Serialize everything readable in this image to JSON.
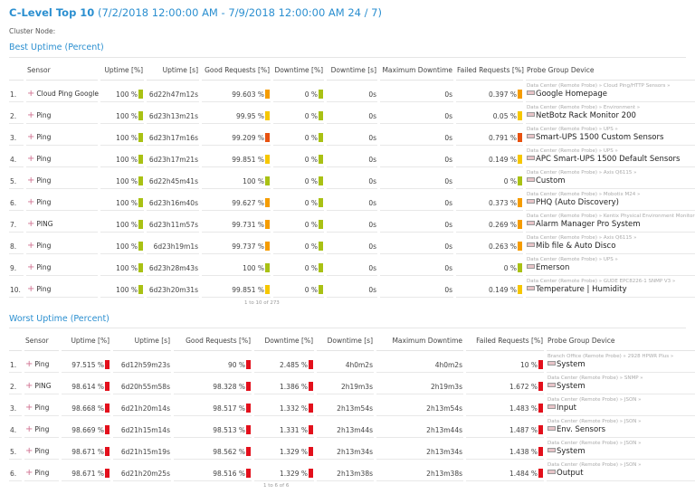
{
  "header": {
    "title_bold": "C-Level Top 10",
    "title_range": "(7/2/2018 12:00:00 AM - 7/9/2018 12:00:00 AM 24 / 7)",
    "cluster_label": "Cluster Node:"
  },
  "colors": {
    "green": "#a9c114",
    "yellow": "#f6c700",
    "orange": "#f59c00",
    "redorange": "#e8520f",
    "red": "#e3101c"
  },
  "best": {
    "title": "Best Uptime (Percent)",
    "columns": [
      "",
      "Sensor",
      "Uptime [%]",
      "Uptime [s]",
      "Good Requests [%]",
      "Downtime [%]",
      "Downtime [s]",
      "Maximum Downtime",
      "Failed Requests [%]",
      "Probe Group Device"
    ],
    "pager": "1 to 10 of 273",
    "rows": [
      {
        "n": "1.",
        "sensor": "Cloud Ping Google",
        "up": "100 %",
        "up_c": "green",
        "ups": "6d22h47m12s",
        "good": "99.603 %",
        "good_c": "orange",
        "down": "0 %",
        "down_c": "green",
        "downs": "0s",
        "max": "0s",
        "fail": "0.397 %",
        "fail_c": "orange",
        "path": "Data Center (Remote Probe) »  Cloud Ping/HTTP Sensors »",
        "device": "Google Homepage"
      },
      {
        "n": "2.",
        "sensor": "Ping",
        "up": "100 %",
        "up_c": "green",
        "ups": "6d23h13m21s",
        "good": "99.95 %",
        "good_c": "yellow",
        "down": "0 %",
        "down_c": "green",
        "downs": "0s",
        "max": "0s",
        "fail": "0.05 %",
        "fail_c": "yellow",
        "path": "Data Center (Remote Probe) »  Environment »",
        "device": "NetBotz Rack Monitor 200"
      },
      {
        "n": "3.",
        "sensor": "Ping",
        "up": "100 %",
        "up_c": "green",
        "ups": "6d23h17m16s",
        "good": "99.209 %",
        "good_c": "redorange",
        "down": "0 %",
        "down_c": "green",
        "downs": "0s",
        "max": "0s",
        "fail": "0.791 %",
        "fail_c": "redorange",
        "path": "Data Center (Remote Probe) »  UPS »",
        "device": "Smart-UPS 1500 Custom Sensors"
      },
      {
        "n": "4.",
        "sensor": "Ping",
        "up": "100 %",
        "up_c": "green",
        "ups": "6d23h17m21s",
        "good": "99.851 %",
        "good_c": "yellow",
        "down": "0 %",
        "down_c": "green",
        "downs": "0s",
        "max": "0s",
        "fail": "0.149 %",
        "fail_c": "yellow",
        "path": "Data Center (Remote Probe) »  UPS »",
        "device": "APC Smart-UPS 1500 Default Sensors"
      },
      {
        "n": "5.",
        "sensor": "Ping",
        "up": "100 %",
        "up_c": "green",
        "ups": "6d22h45m41s",
        "good": "100 %",
        "good_c": "green",
        "down": "0 %",
        "down_c": "green",
        "downs": "0s",
        "max": "0s",
        "fail": "0 %",
        "fail_c": "green",
        "path": "Data Center (Remote Probe) »  Axis Q6115 »",
        "device": "Custom"
      },
      {
        "n": "6.",
        "sensor": "Ping",
        "up": "100 %",
        "up_c": "green",
        "ups": "6d23h16m40s",
        "good": "99.627 %",
        "good_c": "orange",
        "down": "0 %",
        "down_c": "green",
        "downs": "0s",
        "max": "0s",
        "fail": "0.373 %",
        "fail_c": "orange",
        "path": "Data Center (Remote Probe) »  Mobotix M24 »",
        "device": "PHQ (Auto Discovery)"
      },
      {
        "n": "7.",
        "sensor": "PING",
        "up": "100 %",
        "up_c": "green",
        "ups": "6d23h11m57s",
        "good": "99.731 %",
        "good_c": "orange",
        "down": "0 %",
        "down_c": "green",
        "downs": "0s",
        "max": "0s",
        "fail": "0.269 %",
        "fail_c": "orange",
        "path": "Data Center (Remote Probe) »  Kentix Physical Environment Monitoring",
        "device": "Alarm Manager Pro System"
      },
      {
        "n": "8.",
        "sensor": "Ping",
        "up": "100 %",
        "up_c": "green",
        "ups": "6d23h19m1s",
        "good": "99.737 %",
        "good_c": "orange",
        "down": "0 %",
        "down_c": "green",
        "downs": "0s",
        "max": "0s",
        "fail": "0.263 %",
        "fail_c": "orange",
        "path": "Data Center (Remote Probe) »  Axis Q6115 »",
        "device": "Mib file & Auto Disco"
      },
      {
        "n": "9.",
        "sensor": "Ping",
        "up": "100 %",
        "up_c": "green",
        "ups": "6d23h28m43s",
        "good": "100 %",
        "good_c": "green",
        "down": "0 %",
        "down_c": "green",
        "downs": "0s",
        "max": "0s",
        "fail": "0 %",
        "fail_c": "green",
        "path": "Data Center (Remote Probe) »  UPS »",
        "device": "Emerson"
      },
      {
        "n": "10.",
        "sensor": "Ping",
        "up": "100 %",
        "up_c": "green",
        "ups": "6d23h20m31s",
        "good": "99.851 %",
        "good_c": "yellow",
        "down": "0 %",
        "down_c": "green",
        "downs": "0s",
        "max": "0s",
        "fail": "0.149 %",
        "fail_c": "yellow",
        "path": "Data Center (Remote Probe) »  GUDE EPC8226-1 SNMP V3 »",
        "device": "Temperature | Humidity"
      }
    ]
  },
  "worst": {
    "title": "Worst Uptime (Percent)",
    "columns": [
      "",
      "Sensor",
      "Uptime [%]",
      "Uptime [s]",
      "Good Requests [%]",
      "Downtime [%]",
      "Downtime [s]",
      "Maximum Downtime",
      "Failed Requests [%]",
      "Probe Group Device"
    ],
    "pager": "1 to 6 of 6",
    "rows": [
      {
        "n": "1.",
        "sensor": "Ping",
        "up": "97.515 %",
        "up_c": "red",
        "ups": "6d12h59m23s",
        "good": "90 %",
        "good_c": "red",
        "down": "2.485 %",
        "down_c": "red",
        "downs": "4h0m2s",
        "max": "4h0m2s",
        "fail": "10 %",
        "fail_c": "red",
        "path": "Branch Office (Remote Probe) »  2928 HPWR Plus »",
        "device": "System"
      },
      {
        "n": "2.",
        "sensor": "PING",
        "up": "98.614 %",
        "up_c": "red",
        "ups": "6d20h55m58s",
        "good": "98.328 %",
        "good_c": "red",
        "down": "1.386 %",
        "down_c": "red",
        "downs": "2h19m3s",
        "max": "2h19m3s",
        "fail": "1.672 %",
        "fail_c": "red",
        "path": "Data Center (Remote Probe) »  SNMP »",
        "device": "System"
      },
      {
        "n": "3.",
        "sensor": "Ping",
        "up": "98.668 %",
        "up_c": "red",
        "ups": "6d21h20m14s",
        "good": "98.517 %",
        "good_c": "red",
        "down": "1.332 %",
        "down_c": "red",
        "downs": "2h13m54s",
        "max": "2h13m54s",
        "fail": "1.483 %",
        "fail_c": "red",
        "path": "Data Center (Remote Probe) »  JSON »",
        "device": "Input"
      },
      {
        "n": "4.",
        "sensor": "Ping",
        "up": "98.669 %",
        "up_c": "red",
        "ups": "6d21h15m14s",
        "good": "98.513 %",
        "good_c": "red",
        "down": "1.331 %",
        "down_c": "red",
        "downs": "2h13m44s",
        "max": "2h13m44s",
        "fail": "1.487 %",
        "fail_c": "red",
        "path": "Data Center (Remote Probe) »  JSON »",
        "device": "Env. Sensors"
      },
      {
        "n": "5.",
        "sensor": "Ping",
        "up": "98.671 %",
        "up_c": "red",
        "ups": "6d21h15m19s",
        "good": "98.562 %",
        "good_c": "red",
        "down": "1.329 %",
        "down_c": "red",
        "downs": "2h13m34s",
        "max": "2h13m34s",
        "fail": "1.438 %",
        "fail_c": "red",
        "path": "Data Center (Remote Probe) »  JSON »",
        "device": "System"
      },
      {
        "n": "6.",
        "sensor": "Ping",
        "up": "98.671 %",
        "up_c": "red",
        "ups": "6d21h20m25s",
        "good": "98.516 %",
        "good_c": "red",
        "down": "1.329 %",
        "down_c": "red",
        "downs": "2h13m38s",
        "max": "2h13m38s",
        "fail": "1.484 %",
        "fail_c": "red",
        "path": "Data Center (Remote Probe) »  JSON »",
        "device": "Output"
      }
    ]
  }
}
